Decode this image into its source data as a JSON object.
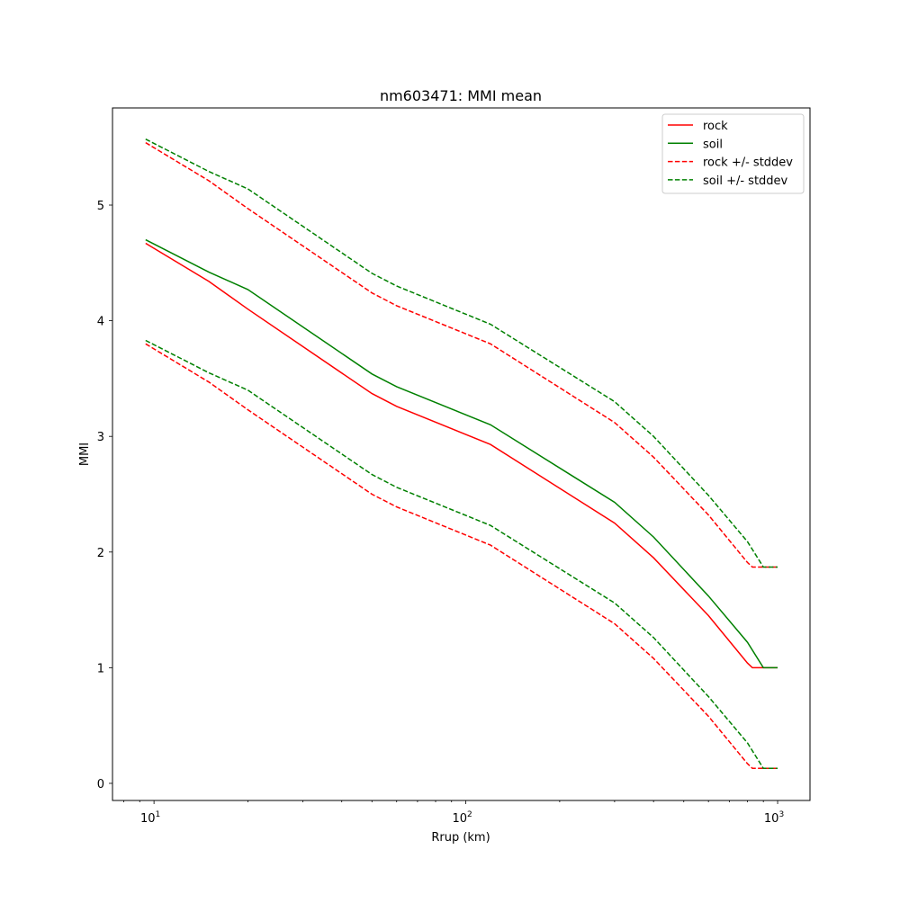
{
  "chart_data": {
    "type": "line",
    "title": "nm603471: MMI mean",
    "xlabel": "Rrup (km)",
    "ylabel": "MMI",
    "xscale": "log",
    "xlim": [
      7.36,
      1270
    ],
    "ylim": [
      -0.148,
      5.84
    ],
    "xticks": [
      {
        "value": 10,
        "base": "10",
        "exp": "1"
      },
      {
        "value": 100,
        "base": "10",
        "exp": "2"
      },
      {
        "value": 1000,
        "base": "10",
        "exp": "3"
      }
    ],
    "yticks": [
      "0",
      "1",
      "2",
      "3",
      "4",
      "5"
    ],
    "grid": false,
    "legend_position": "top-right",
    "series": [
      {
        "name": "rock",
        "color": "#ff0000",
        "style": "solid",
        "x": [
          9.4,
          15,
          20,
          50,
          60,
          120,
          300,
          400,
          600,
          800,
          830,
          1000
        ],
        "y": [
          4.67,
          4.34,
          4.1,
          3.37,
          3.26,
          2.93,
          2.25,
          1.95,
          1.45,
          1.04,
          1.0,
          1.0
        ]
      },
      {
        "name": "soil",
        "color": "#008000",
        "style": "solid",
        "x": [
          9.4,
          15,
          20,
          50,
          60,
          120,
          300,
          400,
          600,
          800,
          900,
          1000
        ],
        "y": [
          4.7,
          4.42,
          4.27,
          3.54,
          3.43,
          3.1,
          2.43,
          2.13,
          1.62,
          1.22,
          1.0,
          1.0
        ]
      },
      {
        "name": "rock +/- stddev",
        "color": "#ff0000",
        "style": "dashed",
        "x": [
          9.4,
          15,
          20,
          50,
          60,
          120,
          300,
          400,
          600,
          800,
          830,
          1000
        ],
        "y": [
          5.54,
          5.21,
          4.97,
          4.24,
          4.13,
          3.8,
          3.12,
          2.82,
          2.32,
          1.91,
          1.87,
          1.87
        ],
        "y_lower": [
          3.8,
          3.47,
          3.23,
          2.5,
          2.39,
          2.06,
          1.38,
          1.08,
          0.58,
          0.17,
          0.13,
          0.13
        ]
      },
      {
        "name": "soil +/- stddev",
        "color": "#008000",
        "style": "dashed",
        "x": [
          9.4,
          15,
          20,
          50,
          60,
          120,
          300,
          400,
          600,
          800,
          900,
          1000
        ],
        "y": [
          5.57,
          5.29,
          5.14,
          4.41,
          4.3,
          3.97,
          3.3,
          3.0,
          2.49,
          2.09,
          1.87,
          1.87
        ],
        "y_lower": [
          3.83,
          3.55,
          3.4,
          2.67,
          2.56,
          2.23,
          1.56,
          1.26,
          0.75,
          0.35,
          0.13,
          0.13
        ]
      }
    ]
  }
}
